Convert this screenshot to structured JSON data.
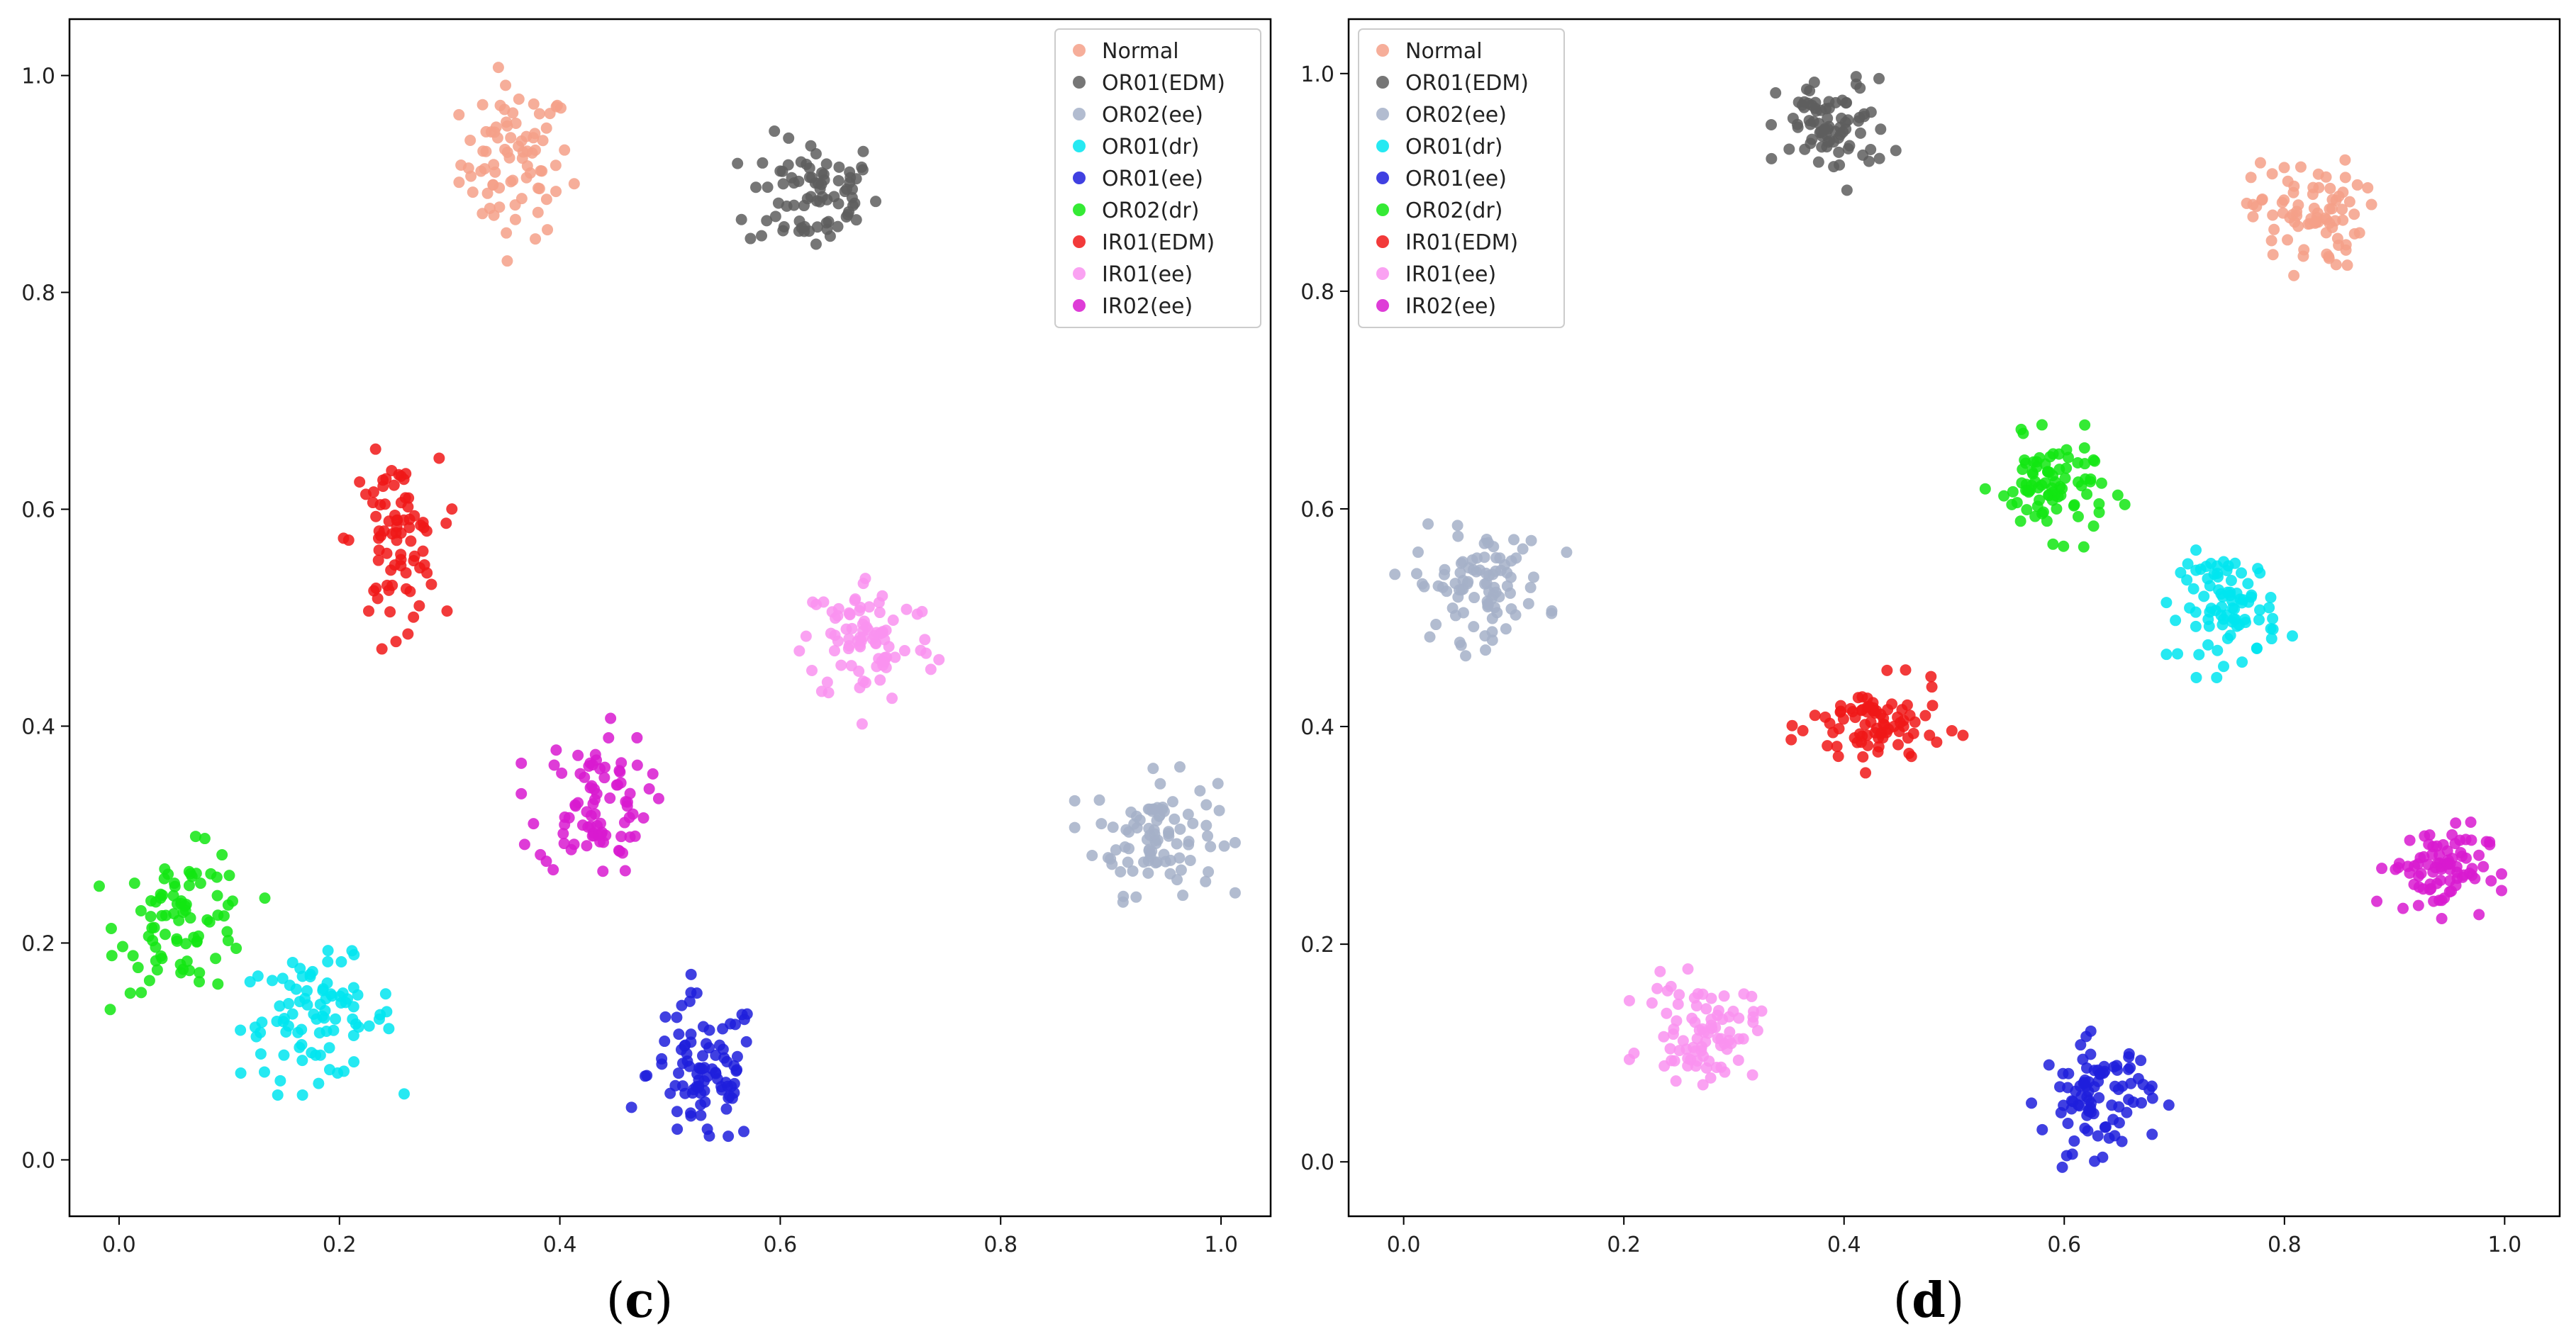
{
  "captions": {
    "left_open": "(",
    "left_letter": "c",
    "left_close": ")",
    "right_open": "(",
    "right_letter": "d",
    "right_close": ")"
  },
  "chart_data": [
    {
      "panel": "c",
      "type": "scatter",
      "title": "",
      "xlabel": "",
      "ylabel": "",
      "xlim": [
        -0.045,
        1.045
      ],
      "ylim": [
        -0.052,
        1.052
      ],
      "xticks": [
        "0.0",
        "0.2",
        "0.4",
        "0.6",
        "0.8",
        "1.0"
      ],
      "yticks": [
        "0.0",
        "0.2",
        "0.4",
        "0.6",
        "0.8",
        "1.0"
      ],
      "legend_position": "top-right",
      "series": [
        {
          "name": "Normal",
          "color": "#f4a088",
          "cx": 0.36,
          "cy": 0.92,
          "sx": 0.025,
          "sy": 0.035,
          "n": 80
        },
        {
          "name": "OR01(EDM)",
          "color": "#5e5e5e",
          "cx": 0.63,
          "cy": 0.89,
          "sx": 0.03,
          "sy": 0.027,
          "n": 80
        },
        {
          "name": "OR02(ee)",
          "color": "#a4b0c8",
          "cx": 0.94,
          "cy": 0.3,
          "sx": 0.028,
          "sy": 0.027,
          "n": 90
        },
        {
          "name": "OR01(dr)",
          "color": "#00e5f0",
          "cx": 0.18,
          "cy": 0.13,
          "sx": 0.035,
          "sy": 0.027,
          "n": 90
        },
        {
          "name": "OR01(ee)",
          "color": "#1f1fdc",
          "cx": 0.53,
          "cy": 0.08,
          "sx": 0.025,
          "sy": 0.035,
          "n": 90
        },
        {
          "name": "OR02(dr)",
          "color": "#12e612",
          "cx": 0.06,
          "cy": 0.22,
          "sx": 0.03,
          "sy": 0.032,
          "n": 85
        },
        {
          "name": "IR01(EDM)",
          "color": "#f01818",
          "cx": 0.25,
          "cy": 0.57,
          "sx": 0.02,
          "sy": 0.038,
          "n": 80
        },
        {
          "name": "IR01(ee)",
          "color": "#f992f0",
          "cx": 0.68,
          "cy": 0.48,
          "sx": 0.03,
          "sy": 0.03,
          "n": 85
        },
        {
          "name": "IR02(ee)",
          "color": "#d81ad0",
          "cx": 0.43,
          "cy": 0.33,
          "sx": 0.025,
          "sy": 0.033,
          "n": 85
        }
      ]
    },
    {
      "panel": "d",
      "type": "scatter",
      "title": "",
      "xlabel": "",
      "ylabel": "",
      "xlim": [
        -0.05,
        1.05
      ],
      "ylim": [
        -0.05,
        1.05
      ],
      "xticks": [
        "0.0",
        "0.2",
        "0.4",
        "0.6",
        "0.8",
        "1.0"
      ],
      "yticks": [
        "0.0",
        "0.2",
        "0.4",
        "0.6",
        "0.8",
        "1.0"
      ],
      "legend_position": "top-left",
      "series": [
        {
          "name": "Normal",
          "color": "#f4a088",
          "cx": 0.82,
          "cy": 0.87,
          "sx": 0.025,
          "sy": 0.025,
          "n": 80
        },
        {
          "name": "OR01(EDM)",
          "color": "#5e5e5e",
          "cx": 0.39,
          "cy": 0.95,
          "sx": 0.025,
          "sy": 0.022,
          "n": 80
        },
        {
          "name": "OR02(ee)",
          "color": "#a4b0c8",
          "cx": 0.07,
          "cy": 0.53,
          "sx": 0.03,
          "sy": 0.025,
          "n": 90
        },
        {
          "name": "OR01(dr)",
          "color": "#00e5f0",
          "cx": 0.75,
          "cy": 0.51,
          "sx": 0.022,
          "sy": 0.025,
          "n": 85
        },
        {
          "name": "OR01(ee)",
          "color": "#1f1fdc",
          "cx": 0.63,
          "cy": 0.06,
          "sx": 0.025,
          "sy": 0.025,
          "n": 90
        },
        {
          "name": "OR02(dr)",
          "color": "#12e612",
          "cx": 0.59,
          "cy": 0.62,
          "sx": 0.025,
          "sy": 0.022,
          "n": 85
        },
        {
          "name": "IR01(EDM)",
          "color": "#f01818",
          "cx": 0.43,
          "cy": 0.4,
          "sx": 0.03,
          "sy": 0.02,
          "n": 85
        },
        {
          "name": "IR01(ee)",
          "color": "#f992f0",
          "cx": 0.27,
          "cy": 0.12,
          "sx": 0.025,
          "sy": 0.022,
          "n": 85
        },
        {
          "name": "IR02(ee)",
          "color": "#d81ad0",
          "cx": 0.94,
          "cy": 0.27,
          "sx": 0.022,
          "sy": 0.02,
          "n": 85
        }
      ]
    }
  ]
}
